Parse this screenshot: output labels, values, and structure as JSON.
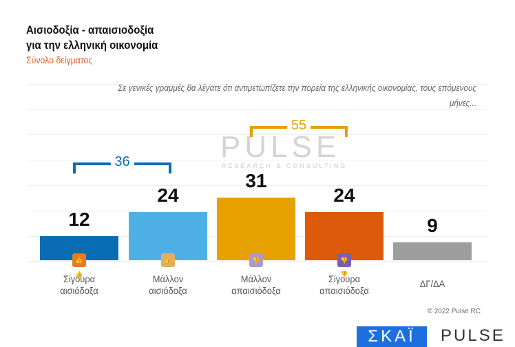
{
  "chart_data": {
    "type": "bar",
    "title": "Αισιοδοξία - απαισιοδοξία για την ελληνική οικονομία",
    "title_lines": [
      "Αισιοδοξία - απαισιοδοξία",
      "για την ελληνική οικονομία"
    ],
    "subtitle": "Σύνολο δείγματος",
    "question": "Σε γενικές γραμμές θα λέγατε ότι αντιμετωπίζετε την πορεία της ελληνικής οικονομίας, τους επόμενους μήνες...",
    "categories": [
      [
        "Σίγουρα",
        "αισιόδοξα"
      ],
      [
        "Μάλλον",
        "αισιόδοξα"
      ],
      [
        "Μάλλον",
        "απαισιόδοξα"
      ],
      [
        "Σίγουρα",
        "απαισιόδοξα"
      ],
      [
        "ΔΓ/ΔΑ",
        ""
      ]
    ],
    "values": [
      12,
      24,
      31,
      24,
      9
    ],
    "value_labels": [
      "12",
      "24",
      "31",
      "24",
      "9"
    ],
    "colors": [
      "#0a6db3",
      "#4fb0e6",
      "#e6a000",
      "#dc5a0a",
      "#9e9e9e"
    ],
    "icons": [
      {
        "name": "double-thumbs-up-icon",
        "color": "#ea7a1e",
        "glyph": "👍👍"
      },
      {
        "name": "thumb-up-icon",
        "color": "#e0b060",
        "glyph": "👍"
      },
      {
        "name": "thumb-down-icon",
        "color": "#a99cc8",
        "glyph": "👎"
      },
      {
        "name": "double-thumbs-down-icon",
        "color": "#7a5fb0",
        "glyph": "👎👎"
      }
    ],
    "groups": [
      {
        "label": "36",
        "color": "#0a6db3",
        "from": 0,
        "to": 1
      },
      {
        "label": "55",
        "color": "#e6a000",
        "from": 2,
        "to": 3
      }
    ],
    "ylim": [
      0,
      40
    ],
    "grid": true
  },
  "watermark": {
    "main": "PULSE",
    "tag": "RESEARCH & CONSULTING"
  },
  "footer": {
    "copyright": "© 2022 Pulse RC",
    "logo_skai": "ΣΚΑΪ",
    "logo_pulse": "PULSE"
  }
}
